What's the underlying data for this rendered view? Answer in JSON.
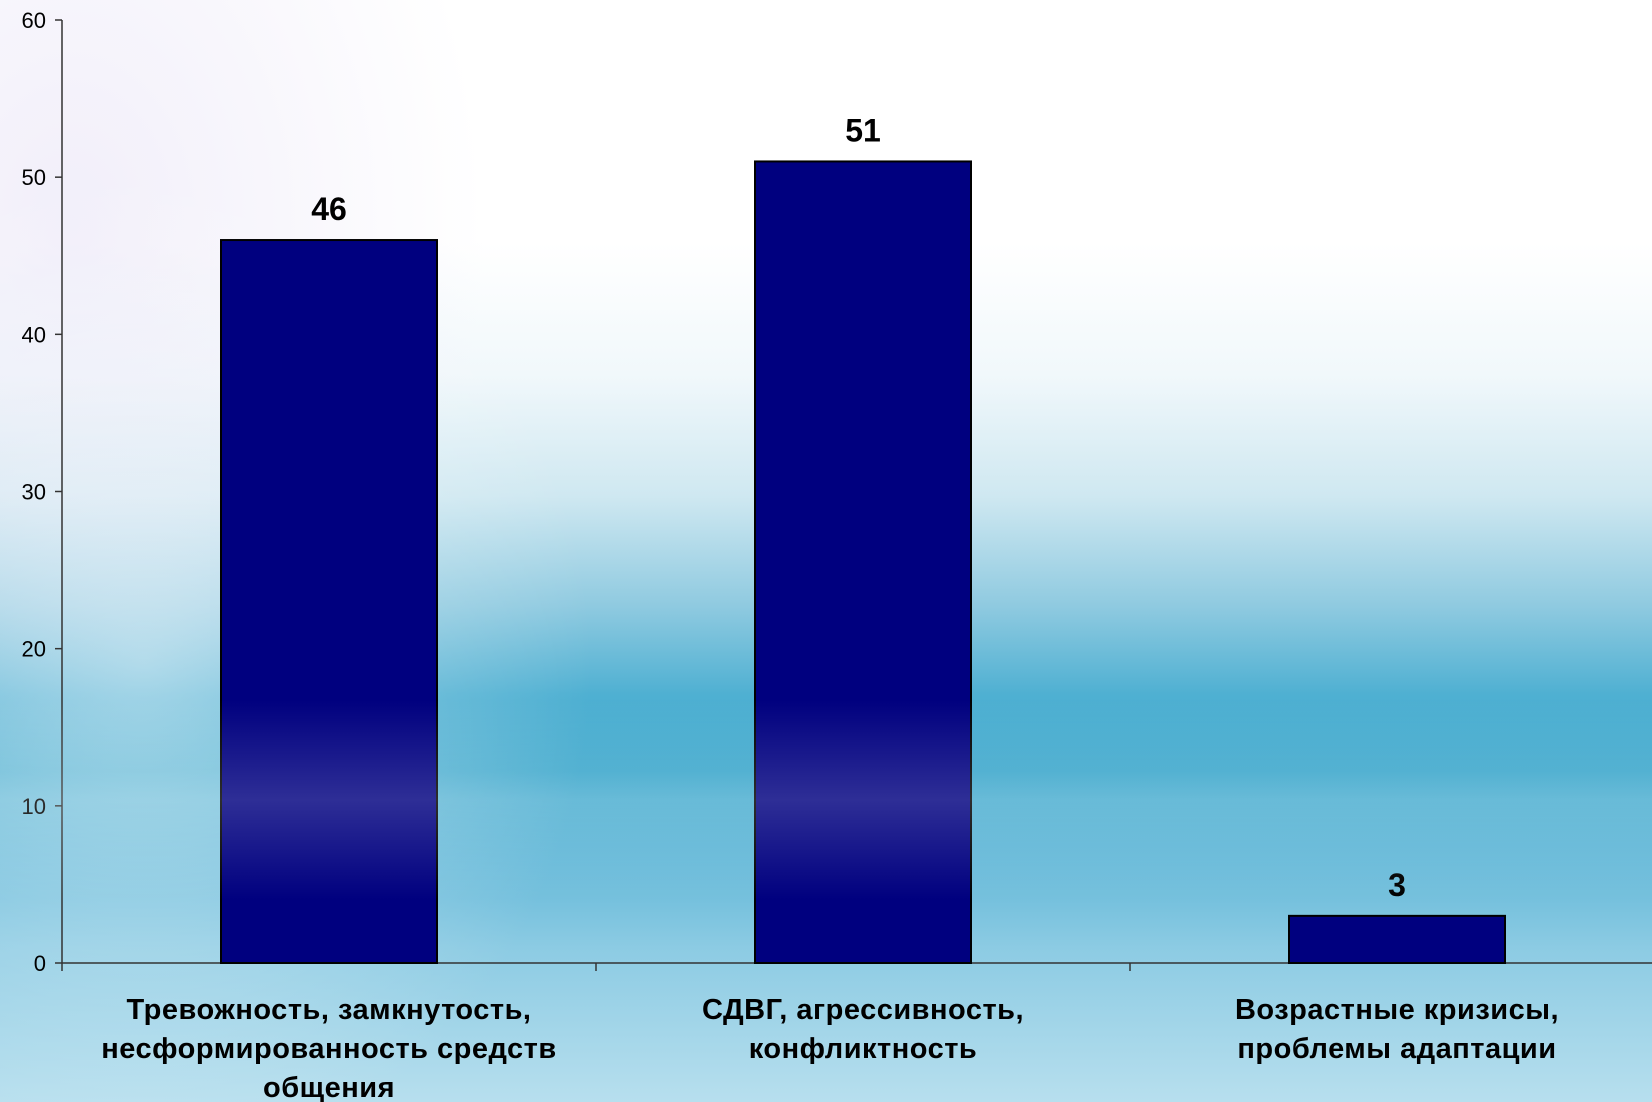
{
  "chart_data": {
    "type": "bar",
    "categories": [
      "Тревожность, замкнутость,\nнесформированность средств\nобщения",
      "СДВГ, агрессивность,\nконфликтность",
      "Возрастные кризисы,\nпроблемы адаптации"
    ],
    "values": [
      46,
      51,
      3
    ],
    "data_labels": [
      "46",
      "51",
      "3"
    ],
    "title": "",
    "xlabel": "",
    "ylabel": "",
    "ylim": [
      0,
      60
    ],
    "yticks": [
      0,
      10,
      20,
      30,
      40,
      50,
      60
    ],
    "grid": false,
    "legend": "none",
    "colors": {
      "bar": "#00007f",
      "bar_edge": "#000000",
      "axis": "#333333"
    }
  }
}
